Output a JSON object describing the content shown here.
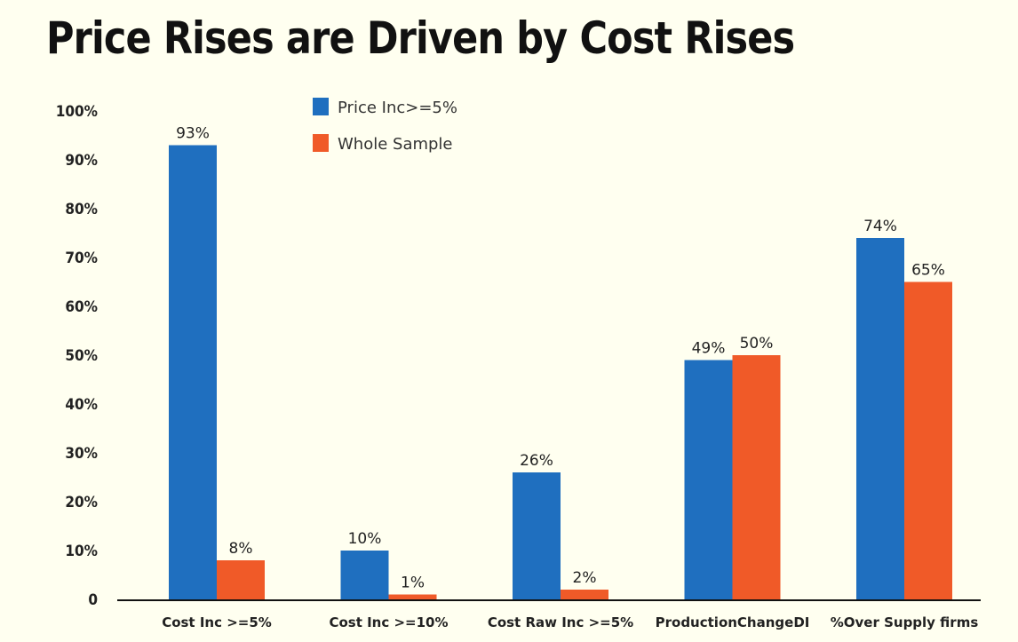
{
  "chart_data": {
    "type": "bar",
    "title": "Price Rises are Driven by Cost Rises",
    "xlabel": "",
    "ylabel": "",
    "categories": [
      "Cost Inc >=5%",
      "Cost Inc >=10%",
      "Cost Raw Inc >=5%",
      "ProductionChangeDI",
      "%Over Supply firms"
    ],
    "series": [
      {
        "name": "Price Inc>=5%",
        "color": "#1f6fbf",
        "values": [
          93,
          10,
          26,
          49,
          74
        ],
        "labels": [
          "93%",
          "10%",
          "26%",
          "49%",
          "74%"
        ]
      },
      {
        "name": "Whole Sample",
        "color": "#f05a28",
        "values": [
          8,
          1,
          2,
          50,
          65
        ],
        "labels": [
          "8%",
          "1%",
          "2%",
          "50%",
          "65%"
        ]
      }
    ],
    "ylim": [
      0,
      100
    ],
    "yticks": [
      "0",
      "10%",
      "20%",
      "30%",
      "40%",
      "50%",
      "60%",
      "70%",
      "80%",
      "90%",
      "100%"
    ],
    "grid": false,
    "legend_position": "top-center"
  }
}
